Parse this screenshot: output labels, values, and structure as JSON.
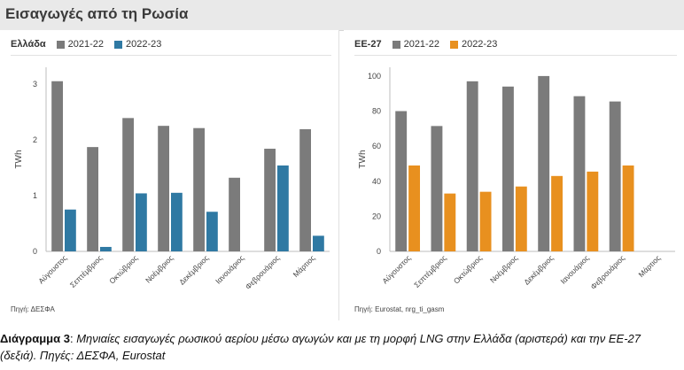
{
  "header": {
    "title": "Εισαγωγές από τη Ρωσία"
  },
  "legend": {
    "series_a": "2021-22",
    "series_b": "2022-23"
  },
  "colors": {
    "grey": "#7b7b7b",
    "blue": "#2f79a3",
    "orange": "#e8901f",
    "axis": "#bdbdbd",
    "tick": "#444444"
  },
  "left_panel": {
    "country": "Ελλάδα",
    "ylabel": "TWh",
    "source": "Πηγή: ΔΕΣΦΑ"
  },
  "right_panel": {
    "country": "ΕΕ-27",
    "ylabel": "TWh",
    "source": "Πηγή: Eurostat, nrg_ti_gasm"
  },
  "caption": {
    "label": "Διάγραμμα 3",
    "separator": ": ",
    "text": "Μηνιαίες εισαγωγές ρωσικού αερίου μέσω αγωγών και με τη μορφή LNG στην Ελλάδα (αριστερά) και την ΕΕ-27 (δεξιά). Πηγές: ΔΕΣΦΑ, Eurostat"
  },
  "chart_data": [
    {
      "type": "bar",
      "categories": [
        "Αύγουστος",
        "Σεπτέμβριος",
        "Οκτώβριος",
        "Νοέμβριος",
        "Δεκέμβριος",
        "Ιανουάριος",
        "Φεβρουάριος",
        "Μάρτιος"
      ],
      "series": [
        {
          "name": "2021-22",
          "color": "#7b7b7b",
          "values": [
            3.05,
            1.87,
            2.39,
            2.25,
            2.21,
            1.32,
            1.84,
            2.19
          ]
        },
        {
          "name": "2022-23",
          "color": "#2f79a3",
          "values": [
            0.75,
            0.08,
            1.04,
            1.05,
            0.71,
            0.0,
            1.54,
            0.28
          ]
        }
      ],
      "title": "",
      "xlabel": "",
      "ylabel": "TWh",
      "ylim": [
        0,
        3.3
      ],
      "yticks": [
        0,
        1,
        2,
        3
      ],
      "grid": false,
      "legend": "top-left"
    },
    {
      "type": "bar",
      "categories": [
        "Αύγουστος",
        "Σεπτέμβριος",
        "Οκτώβριος",
        "Νοέμβριος",
        "Δεκέμβριος",
        "Ιανουάριος",
        "Φεβρουάριος",
        "Μάρτιος"
      ],
      "series": [
        {
          "name": "2021-22",
          "color": "#7b7b7b",
          "values": [
            80,
            71.5,
            97,
            94,
            100,
            88.5,
            85.5,
            0
          ]
        },
        {
          "name": "2022-23",
          "color": "#e8901f",
          "values": [
            49,
            33,
            34,
            37,
            43,
            45.5,
            49,
            0
          ]
        }
      ],
      "title": "",
      "xlabel": "",
      "ylabel": "TWh",
      "ylim": [
        0,
        105
      ],
      "yticks": [
        0,
        20,
        40,
        60,
        80,
        100
      ],
      "grid": false,
      "legend": "top-left"
    }
  ]
}
